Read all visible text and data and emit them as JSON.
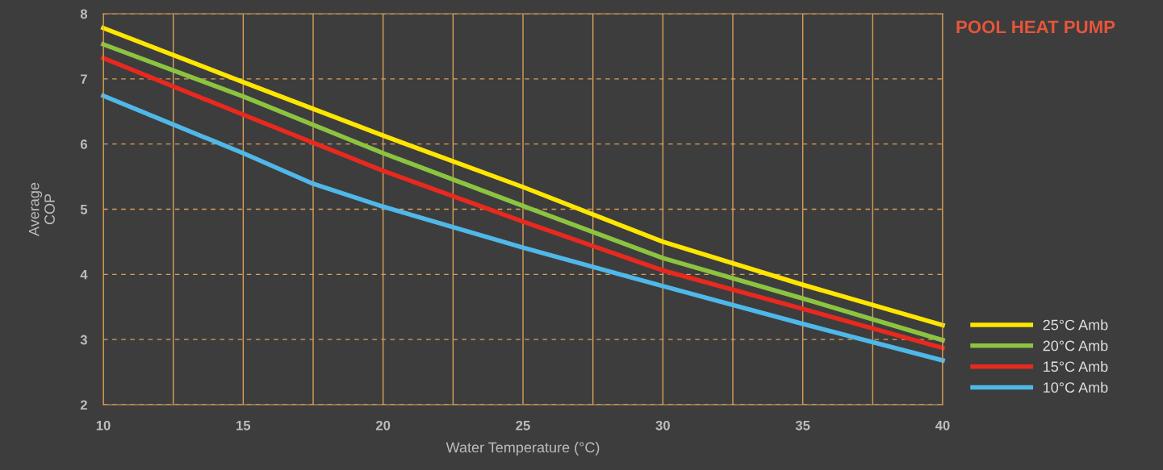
{
  "chart_data": {
    "type": "line",
    "title": "POOL HEAT PUMP",
    "xlabel": "Water Temperature (°C)",
    "ylabel": "Average\nCOP",
    "xlim": [
      10,
      40
    ],
    "ylim": [
      2,
      8
    ],
    "xticks": [
      10,
      {
        "value": 12.5,
        "label": null
      },
      15,
      {
        "value": 17.5,
        "label": null
      },
      20,
      {
        "value": 22.5,
        "label": null
      },
      25,
      {
        "value": 27.5,
        "label": null
      },
      30,
      {
        "value": 32.5,
        "label": null
      },
      35,
      {
        "value": 37.5,
        "label": null
      },
      40
    ],
    "yticks": [
      2,
      3,
      4,
      5,
      6,
      7,
      8
    ],
    "grid": true,
    "legend": "bottom right",
    "marker": "none",
    "line_style": "solid",
    "series": [
      {
        "name": "25°C Amb",
        "color": "#ffe600",
        "x": [
          10,
          15,
          20,
          25,
          30,
          35,
          40
        ],
        "values": [
          7.78,
          6.95,
          6.13,
          5.34,
          4.5,
          3.84,
          3.22
        ]
      },
      {
        "name": "20°C Amb",
        "color": "#8cc43f",
        "x": [
          10,
          15,
          20,
          25,
          30,
          35,
          40
        ],
        "values": [
          7.53,
          6.73,
          5.86,
          5.05,
          4.25,
          3.63,
          2.99
        ]
      },
      {
        "name": "15°C Amb",
        "color": "#e8291f",
        "x": [
          10,
          15,
          20,
          25,
          30,
          35,
          40
        ],
        "values": [
          7.32,
          6.45,
          5.59,
          4.81,
          4.06,
          3.47,
          2.87
        ]
      },
      {
        "name": "10°C Amb",
        "color": "#4fb8e8",
        "x": [
          10,
          15,
          17.5,
          20,
          25,
          30,
          35,
          40
        ],
        "values": [
          6.74,
          5.86,
          5.39,
          5.04,
          4.41,
          3.82,
          3.24,
          2.68
        ]
      }
    ]
  }
}
